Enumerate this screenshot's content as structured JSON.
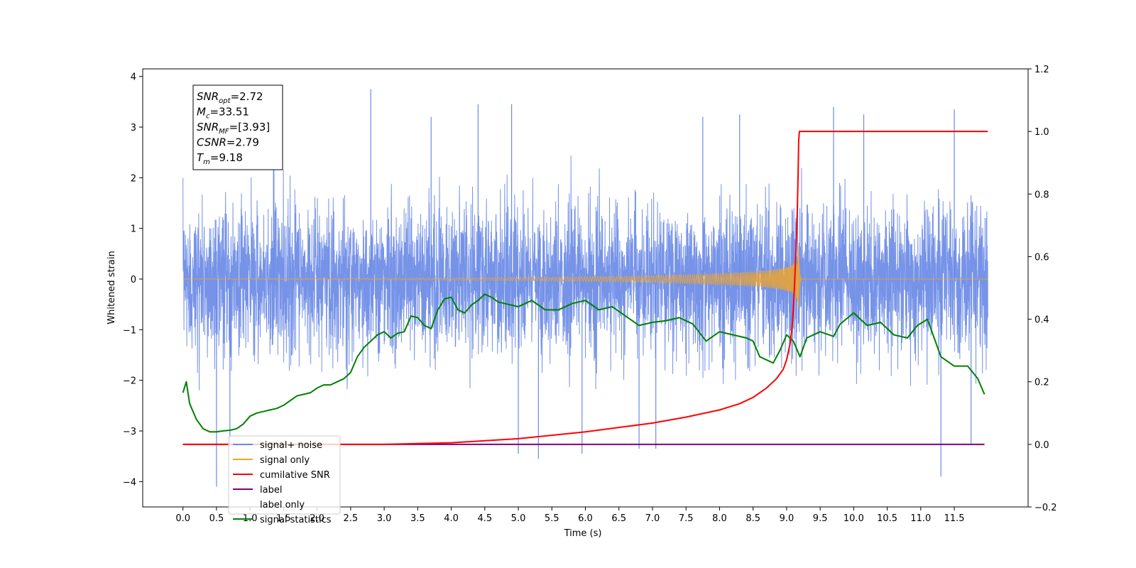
{
  "chart_data": {
    "type": "line",
    "xlabel": "Time (s)",
    "ylabel": "Whitened strain",
    "xlim": [
      -0.6,
      12.6
    ],
    "ylim_left": [
      -4.5,
      4.15
    ],
    "ylim_right": [
      -0.2,
      1.2
    ],
    "x_ticks": [
      0.0,
      0.5,
      1.0,
      1.5,
      2.0,
      2.5,
      3.0,
      3.5,
      4.0,
      4.5,
      5.0,
      5.5,
      6.0,
      6.5,
      7.0,
      7.5,
      8.0,
      8.5,
      9.0,
      9.5,
      10.0,
      10.5,
      11.0,
      11.5
    ],
    "x_tick_labels": [
      "0.0",
      "0.5",
      "1.0",
      "1.5",
      "2.0",
      "2.5",
      "3.0",
      "3.5",
      "4.0",
      "4.5",
      "5.0",
      "5.5",
      "6.0",
      "6.5",
      "7.0",
      "7.5",
      "8.0",
      "8.5",
      "9.0",
      "9.5",
      "10.0",
      "10.5",
      "11.0",
      "11.5"
    ],
    "y_left_ticks": [
      -4,
      -3,
      -2,
      -1,
      0,
      1,
      2,
      3,
      4
    ],
    "y_left_tick_labels": [
      "−4",
      "−3",
      "−2",
      "−1",
      "0",
      "1",
      "2",
      "3",
      "4"
    ],
    "y_right_ticks": [
      -0.2,
      0.0,
      0.2,
      0.4,
      0.6,
      0.8,
      1.0,
      1.2
    ],
    "y_right_tick_labels": [
      "−0.2",
      "0.0",
      "0.2",
      "0.4",
      "0.6",
      "0.8",
      "1.0",
      "1.2"
    ],
    "annotation": {
      "lines": [
        {
          "sym": "SNR",
          "sub": "opt",
          "val": "=2.72"
        },
        {
          "sym": "M",
          "sub": "c",
          "val": "=33.51"
        },
        {
          "sym": "SNR",
          "sub": "MF",
          "val": "=[3.93]"
        },
        {
          "sym": "CSNR",
          "sub": "",
          "val": "=2.79"
        },
        {
          "sym": "T",
          "sub": "m",
          "val": "=9.18"
        }
      ]
    },
    "series": [
      {
        "name": "signal+ noise",
        "axis": "left",
        "color": "#6a8ae6",
        "x_range": [
          0.0,
          12.0
        ],
        "std": 0.72,
        "envelope": [
          -1.75,
          1.85
        ],
        "spikes": [
          [
            0.5,
            -4.1
          ],
          [
            0.7,
            -3.3
          ],
          [
            1.35,
            3.0
          ],
          [
            2.8,
            3.75
          ],
          [
            3.7,
            3.2
          ],
          [
            4.4,
            3.45
          ],
          [
            4.9,
            3.45
          ],
          [
            5.0,
            -3.45
          ],
          [
            5.3,
            -3.55
          ],
          [
            5.95,
            -3.45
          ],
          [
            6.8,
            -3.35
          ],
          [
            7.05,
            -3.35
          ],
          [
            7.75,
            3.2
          ],
          [
            8.3,
            3.25
          ],
          [
            9.7,
            3.4
          ],
          [
            10.15,
            3.25
          ],
          [
            11.3,
            -3.9
          ],
          [
            11.5,
            3.35
          ],
          [
            11.75,
            -3.25
          ]
        ]
      },
      {
        "name": "signal only",
        "axis": "left",
        "color": "#f5a623",
        "x_range": [
          0.0,
          12.0
        ],
        "merger_time": 9.18,
        "peak_amplitude": 0.65
      },
      {
        "name": "cumilative SNR",
        "axis": "right",
        "color": "#ff0000",
        "x": [
          0.0,
          3.0,
          4.0,
          5.0,
          6.0,
          7.0,
          7.5,
          8.0,
          8.3,
          8.5,
          8.7,
          8.85,
          8.95,
          9.0,
          9.05,
          9.08,
          9.1,
          9.12,
          9.14,
          9.16,
          9.17,
          9.18,
          9.19,
          12.0
        ],
        "y": [
          0.0,
          0.0,
          0.005,
          0.018,
          0.04,
          0.068,
          0.087,
          0.11,
          0.13,
          0.15,
          0.18,
          0.21,
          0.24,
          0.27,
          0.32,
          0.37,
          0.43,
          0.52,
          0.62,
          0.75,
          0.85,
          0.97,
          1.0,
          1.0
        ]
      },
      {
        "name": "label",
        "axis": "right",
        "color": "#800080",
        "x": [
          0.0,
          11.95
        ],
        "y": [
          0.0,
          0.0
        ]
      },
      {
        "name": "label only",
        "axis": "right",
        "color": "#ffffff",
        "x": [
          0.0,
          11.95
        ],
        "y": [
          0.0,
          0.0
        ]
      },
      {
        "name": "signal statistics",
        "axis": "right",
        "color": "#008000",
        "x": [
          0.0,
          0.05,
          0.1,
          0.2,
          0.3,
          0.4,
          0.5,
          0.6,
          0.7,
          0.8,
          0.9,
          1.0,
          1.1,
          1.2,
          1.3,
          1.4,
          1.5,
          1.6,
          1.7,
          1.8,
          1.9,
          2.0,
          2.1,
          2.2,
          2.3,
          2.4,
          2.5,
          2.6,
          2.7,
          2.8,
          2.9,
          3.0,
          3.1,
          3.2,
          3.3,
          3.4,
          3.5,
          3.6,
          3.7,
          3.8,
          3.9,
          4.0,
          4.1,
          4.2,
          4.3,
          4.4,
          4.5,
          4.6,
          4.7,
          4.8,
          4.9,
          5.0,
          5.2,
          5.4,
          5.6,
          5.8,
          6.0,
          6.2,
          6.4,
          6.6,
          6.8,
          7.0,
          7.2,
          7.4,
          7.6,
          7.8,
          8.0,
          8.2,
          8.4,
          8.5,
          8.6,
          8.8,
          8.9,
          9.0,
          9.1,
          9.2,
          9.3,
          9.5,
          9.7,
          9.8,
          10.0,
          10.2,
          10.4,
          10.6,
          10.8,
          10.95,
          11.1,
          11.3,
          11.5,
          11.7,
          11.85,
          11.95
        ],
        "y": [
          0.165,
          0.2,
          0.13,
          0.08,
          0.05,
          0.04,
          0.04,
          0.043,
          0.045,
          0.05,
          0.065,
          0.09,
          0.1,
          0.105,
          0.11,
          0.115,
          0.125,
          0.14,
          0.155,
          0.16,
          0.165,
          0.18,
          0.19,
          0.19,
          0.2,
          0.21,
          0.23,
          0.28,
          0.31,
          0.33,
          0.35,
          0.36,
          0.34,
          0.355,
          0.36,
          0.41,
          0.405,
          0.38,
          0.37,
          0.43,
          0.465,
          0.47,
          0.43,
          0.42,
          0.445,
          0.46,
          0.48,
          0.47,
          0.455,
          0.45,
          0.445,
          0.44,
          0.46,
          0.43,
          0.43,
          0.45,
          0.46,
          0.43,
          0.44,
          0.41,
          0.38,
          0.39,
          0.395,
          0.405,
          0.385,
          0.33,
          0.36,
          0.35,
          0.34,
          0.33,
          0.28,
          0.26,
          0.3,
          0.35,
          0.33,
          0.28,
          0.34,
          0.36,
          0.345,
          0.385,
          0.42,
          0.38,
          0.39,
          0.35,
          0.34,
          0.38,
          0.4,
          0.28,
          0.25,
          0.25,
          0.21,
          0.16
        ]
      }
    ],
    "legend": {
      "placement": "lower-left",
      "entries": [
        {
          "label": "signal+ noise",
          "color": "#6a8ae6"
        },
        {
          "label": "signal only",
          "color": "#f5a623"
        },
        {
          "label": "cumilative SNR",
          "color": "#ff0000"
        },
        {
          "label": "label",
          "color": "#800080"
        },
        {
          "label": "label only",
          "color": "#ffffff"
        },
        {
          "label": "signal statistics",
          "color": "#008000"
        }
      ]
    }
  }
}
